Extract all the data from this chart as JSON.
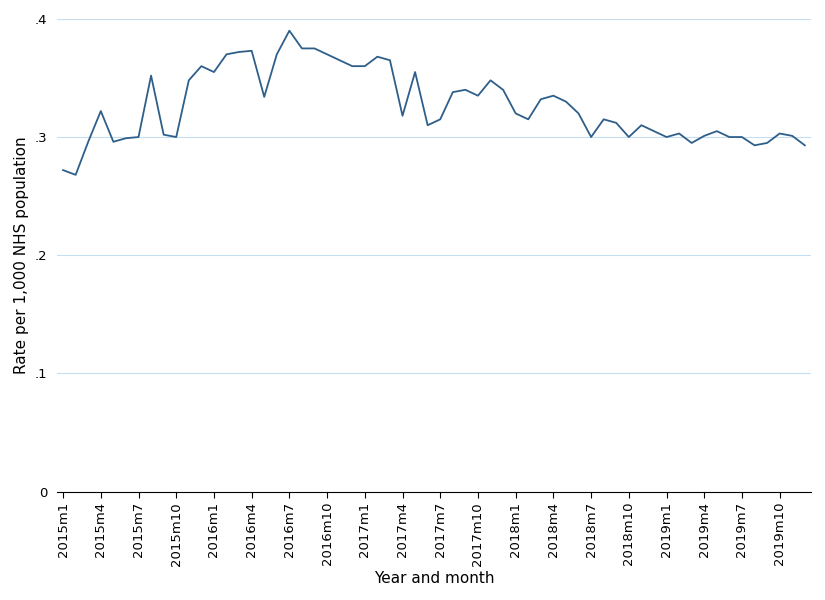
{
  "x_labels": [
    "2015m1",
    "2015m4",
    "2015m7",
    "2015m10",
    "2016m1",
    "2016m4",
    "2016m7",
    "2016m10",
    "2017m1",
    "2017m4",
    "2017m7",
    "2017m10",
    "2018m1",
    "2018m4",
    "2018m7",
    "2018m10",
    "2019m1",
    "2019m4",
    "2019m7",
    "2019m10"
  ],
  "x_tick_positions": [
    0,
    3,
    6,
    9,
    12,
    15,
    18,
    21,
    24,
    27,
    30,
    33,
    36,
    39,
    42,
    45,
    48,
    51,
    54,
    57
  ],
  "values": [
    0.272,
    0.268,
    0.296,
    0.322,
    0.296,
    0.299,
    0.3,
    0.352,
    0.302,
    0.3,
    0.348,
    0.36,
    0.355,
    0.37,
    0.372,
    0.373,
    0.334,
    0.37,
    0.39,
    0.375,
    0.375,
    0.37,
    0.365,
    0.36,
    0.36,
    0.368,
    0.365,
    0.318,
    0.355,
    0.31,
    0.315,
    0.338,
    0.34,
    0.335,
    0.348,
    0.34,
    0.32,
    0.315,
    0.332,
    0.335,
    0.33,
    0.32,
    0.3,
    0.315,
    0.312,
    0.3,
    0.31,
    0.305,
    0.3,
    0.303,
    0.295,
    0.301,
    0.305,
    0.3,
    0.3,
    0.293,
    0.295,
    0.303,
    0.301,
    0.293
  ],
  "line_color": "#2e5f8a",
  "line_width": 1.3,
  "ylabel": "Rate per 1,000 NHS population",
  "xlabel": "Year and month",
  "ylim": [
    0,
    0.4
  ],
  "yticks": [
    0,
    0.1,
    0.2,
    0.3,
    0.4
  ],
  "ytick_labels": [
    "0",
    ".1",
    ".2",
    ".3",
    ".4"
  ],
  "grid_color": "#c5dff0",
  "background_color": "#ffffff",
  "font_size": 11,
  "tick_fontsize": 9.5
}
